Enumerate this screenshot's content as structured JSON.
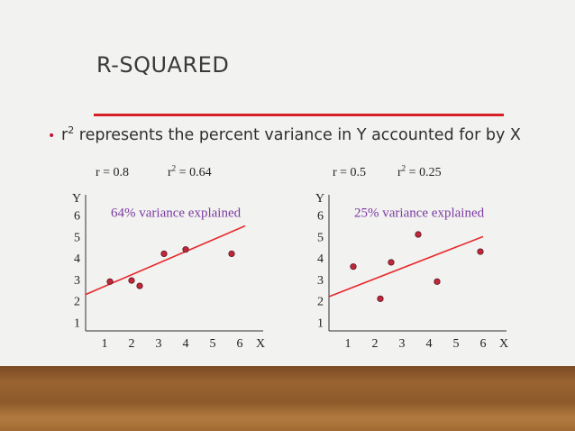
{
  "slide": {
    "title": "R-SQUARED",
    "bullet_prefix": "r",
    "bullet_sup": "2",
    "bullet_text": " represents the percent variance in Y accounted for by X"
  },
  "colors": {
    "title_rule": "#d61f26",
    "annotation": "#7b3aa0",
    "regression_line": "#e8282b",
    "points": "#c0283a",
    "floor": "#8d5a2a"
  },
  "chart_data": [
    {
      "type": "scatter",
      "stat_r": "r = 0.8",
      "stat_r2_prefix": "r",
      "stat_r2_sup": "2",
      "stat_r2_value": " = 0.64",
      "annotation": "64% variance explained",
      "xlabel": "X",
      "ylabel": "Y",
      "x_ticks": [
        "1",
        "2",
        "3",
        "4",
        "5",
        "6"
      ],
      "y_ticks": [
        "1",
        "2",
        "3",
        "4",
        "5",
        "6"
      ],
      "xlim": [
        0.3,
        6.8
      ],
      "ylim": [
        0.6,
        6.7
      ],
      "points": [
        {
          "x": 1.2,
          "y": 2.9
        },
        {
          "x": 2.0,
          "y": 2.95
        },
        {
          "x": 2.3,
          "y": 2.7
        },
        {
          "x": 3.2,
          "y": 4.2
        },
        {
          "x": 4.0,
          "y": 4.4
        },
        {
          "x": 5.7,
          "y": 4.2
        }
      ],
      "fit": {
        "x0": 0.3,
        "y0": 2.3,
        "x1": 6.2,
        "y1": 5.5
      }
    },
    {
      "type": "scatter",
      "stat_r": "r = 0.5",
      "stat_r2_prefix": "r",
      "stat_r2_sup": "2",
      "stat_r2_value": " = 0.25",
      "annotation": "25% variance explained",
      "xlabel": "X",
      "ylabel": "Y",
      "x_ticks": [
        "1",
        "2",
        "3",
        "4",
        "5",
        "6"
      ],
      "y_ticks": [
        "1",
        "2",
        "3",
        "4",
        "5",
        "6"
      ],
      "xlim": [
        0.3,
        6.8
      ],
      "ylim": [
        0.6,
        6.7
      ],
      "points": [
        {
          "x": 1.2,
          "y": 3.6
        },
        {
          "x": 2.2,
          "y": 2.1
        },
        {
          "x": 2.6,
          "y": 3.8
        },
        {
          "x": 3.6,
          "y": 5.1
        },
        {
          "x": 4.3,
          "y": 2.9
        },
        {
          "x": 5.9,
          "y": 4.3
        }
      ],
      "fit": {
        "x0": 0.3,
        "y0": 2.2,
        "x1": 6.0,
        "y1": 5.0
      }
    }
  ]
}
